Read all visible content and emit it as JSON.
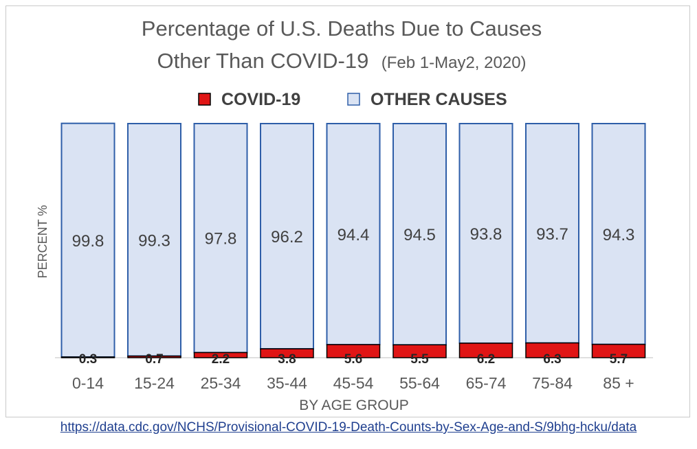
{
  "chart_data": {
    "type": "bar",
    "stacked": true,
    "title_line1": "Percentage of U.S. Deaths Due to Causes",
    "title_line2": "Other Than COVID-19",
    "title_date": "(Feb 1-May2, 2020)",
    "xlabel": "BY AGE GROUP",
    "ylabel": "PERCENT %",
    "ylim": [
      0,
      100
    ],
    "grid": false,
    "legend_placement": "top-center",
    "categories": [
      "0-14",
      "15-24",
      "25-34",
      "35-44",
      "45-54",
      "55-64",
      "65-74",
      "75-84",
      "85 +"
    ],
    "series": [
      {
        "name": "COVID-19",
        "color": "#e01515",
        "values": [
          0.3,
          0.7,
          2.2,
          3.8,
          5.6,
          5.5,
          6.2,
          6.3,
          5.7
        ]
      },
      {
        "name": "OTHER CAUSES",
        "color": "#dae3f3",
        "values": [
          99.8,
          99.3,
          97.8,
          96.2,
          94.4,
          94.5,
          93.8,
          93.7,
          94.3
        ]
      }
    ],
    "bar_outline_color": "#2e5ea8"
  },
  "source": {
    "url_text": "https://data.cdc.gov/NCHS/Provisional-COVID-19-Death-Counts-by-Sex-Age-and-S/9bhg-hcku/data"
  }
}
